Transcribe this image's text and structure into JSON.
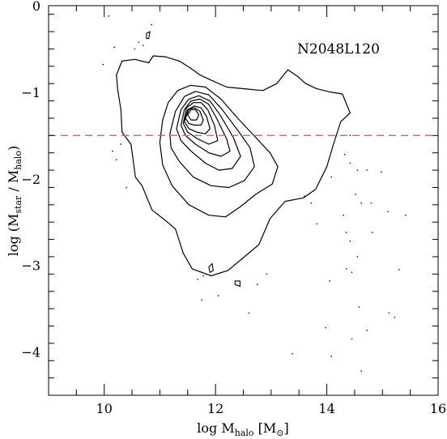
{
  "chart_data": {
    "type": "contour",
    "annotation": "N2048L120",
    "xlabel": {
      "main": "log M",
      "sub": "halo",
      "unit_open": " [M",
      "unit_sub": "⊙",
      "unit_close": "]"
    },
    "ylabel": {
      "open": "log (M",
      "sub1": "star",
      "mid": " / M",
      "sub2": "halo",
      "close": ")"
    },
    "xlim": [
      9,
      16
    ],
    "ylim": [
      -4.5,
      0
    ],
    "xticks": [
      10,
      12,
      14,
      16
    ],
    "yticks": [
      0,
      -1,
      -2,
      -3,
      -4
    ],
    "xticklabels": [
      "10",
      "12",
      "14",
      "16"
    ],
    "yticklabels": [
      "0",
      "−1",
      "−2",
      "−3",
      "−4"
    ],
    "reference_line": {
      "y": -1.5,
      "style": "dashed",
      "color": "#e06060"
    },
    "line_color": "#000000",
    "contours": [
      [
        [
          10.32,
          -0.64
        ],
        [
          10.55,
          -0.62
        ],
        [
          10.8,
          -0.66
        ],
        [
          10.88,
          -0.58
        ],
        [
          11.1,
          -0.59
        ],
        [
          11.35,
          -0.64
        ],
        [
          11.55,
          -0.72
        ],
        [
          11.72,
          -0.8
        ],
        [
          11.92,
          -0.86
        ],
        [
          12.2,
          -0.94
        ],
        [
          12.52,
          -0.96
        ],
        [
          12.85,
          -0.98
        ],
        [
          13.1,
          -0.9
        ],
        [
          13.3,
          -0.74
        ],
        [
          13.48,
          -0.82
        ],
        [
          13.62,
          -0.9
        ],
        [
          13.82,
          -0.96
        ],
        [
          14.08,
          -1.0
        ],
        [
          14.28,
          -1.02
        ],
        [
          14.42,
          -1.24
        ],
        [
          14.25,
          -1.34
        ],
        [
          14.12,
          -1.6
        ],
        [
          14.0,
          -1.86
        ],
        [
          13.8,
          -2.12
        ],
        [
          13.58,
          -2.22
        ],
        [
          13.25,
          -2.26
        ],
        [
          12.98,
          -2.46
        ],
        [
          12.78,
          -2.76
        ],
        [
          12.52,
          -2.9
        ],
        [
          12.22,
          -3.06
        ],
        [
          11.92,
          -3.12
        ],
        [
          11.58,
          -3.04
        ],
        [
          11.42,
          -2.86
        ],
        [
          11.28,
          -2.58
        ],
        [
          11.1,
          -2.48
        ],
        [
          10.86,
          -2.36
        ],
        [
          10.68,
          -2.08
        ],
        [
          10.56,
          -1.98
        ],
        [
          10.52,
          -1.78
        ],
        [
          10.48,
          -1.6
        ],
        [
          10.32,
          -1.46
        ],
        [
          10.3,
          -1.2
        ],
        [
          10.24,
          -0.96
        ],
        [
          10.22,
          -0.8
        ]
      ],
      [
        [
          11.0,
          -1.58
        ],
        [
          11.05,
          -1.32
        ],
        [
          11.15,
          -1.12
        ],
        [
          11.32,
          -0.98
        ],
        [
          11.55,
          -0.92
        ],
        [
          11.82,
          -0.94
        ],
        [
          12.1,
          -1.08
        ],
        [
          12.4,
          -1.3
        ],
        [
          12.72,
          -1.52
        ],
        [
          12.98,
          -1.7
        ],
        [
          13.12,
          -1.86
        ],
        [
          13.02,
          -2.06
        ],
        [
          12.72,
          -2.18
        ],
        [
          12.45,
          -2.32
        ],
        [
          12.18,
          -2.44
        ],
        [
          11.88,
          -2.42
        ],
        [
          11.52,
          -2.3
        ],
        [
          11.22,
          -2.08
        ],
        [
          11.05,
          -1.84
        ]
      ],
      [
        [
          11.18,
          -1.48
        ],
        [
          11.28,
          -1.22
        ],
        [
          11.44,
          -1.05
        ],
        [
          11.64,
          -0.99
        ],
        [
          11.88,
          -1.03
        ],
        [
          12.12,
          -1.2
        ],
        [
          12.4,
          -1.44
        ],
        [
          12.62,
          -1.64
        ],
        [
          12.7,
          -1.86
        ],
        [
          12.52,
          -2.02
        ],
        [
          12.24,
          -2.1
        ],
        [
          11.92,
          -2.08
        ],
        [
          11.6,
          -1.98
        ],
        [
          11.35,
          -1.8
        ],
        [
          11.2,
          -1.64
        ]
      ],
      [
        [
          11.3,
          -1.42
        ],
        [
          11.38,
          -1.2
        ],
        [
          11.52,
          -1.08
        ],
        [
          11.7,
          -1.04
        ],
        [
          11.9,
          -1.1
        ],
        [
          12.08,
          -1.26
        ],
        [
          12.32,
          -1.52
        ],
        [
          12.45,
          -1.74
        ],
        [
          12.3,
          -1.88
        ],
        [
          12.06,
          -1.9
        ],
        [
          11.82,
          -1.82
        ],
        [
          11.56,
          -1.68
        ],
        [
          11.38,
          -1.56
        ]
      ],
      [
        [
          11.38,
          -1.38
        ],
        [
          11.44,
          -1.2
        ],
        [
          11.56,
          -1.1
        ],
        [
          11.72,
          -1.08
        ],
        [
          11.88,
          -1.14
        ],
        [
          12.02,
          -1.3
        ],
        [
          12.2,
          -1.54
        ],
        [
          12.26,
          -1.68
        ],
        [
          12.1,
          -1.74
        ],
        [
          11.88,
          -1.7
        ],
        [
          11.64,
          -1.6
        ],
        [
          11.46,
          -1.5
        ]
      ],
      [
        [
          11.42,
          -1.36
        ],
        [
          11.48,
          -1.18
        ],
        [
          11.6,
          -1.12
        ],
        [
          11.74,
          -1.12
        ],
        [
          11.86,
          -1.2
        ],
        [
          11.98,
          -1.38
        ],
        [
          12.04,
          -1.56
        ],
        [
          11.88,
          -1.6
        ],
        [
          11.68,
          -1.54
        ],
        [
          11.5,
          -1.46
        ]
      ],
      [
        [
          11.44,
          -1.34
        ],
        [
          11.5,
          -1.2
        ],
        [
          11.62,
          -1.16
        ],
        [
          11.74,
          -1.18
        ],
        [
          11.84,
          -1.28
        ],
        [
          11.9,
          -1.42
        ],
        [
          11.82,
          -1.48
        ],
        [
          11.66,
          -1.46
        ],
        [
          11.52,
          -1.42
        ]
      ],
      [
        [
          11.46,
          -1.3
        ],
        [
          11.52,
          -1.2
        ],
        [
          11.62,
          -1.18
        ],
        [
          11.72,
          -1.22
        ],
        [
          11.78,
          -1.32
        ],
        [
          11.74,
          -1.38
        ],
        [
          11.62,
          -1.38
        ],
        [
          11.52,
          -1.36
        ]
      ],
      [
        [
          11.5,
          -1.26
        ],
        [
          11.56,
          -1.2
        ],
        [
          11.64,
          -1.2
        ],
        [
          11.7,
          -1.26
        ],
        [
          11.66,
          -1.32
        ],
        [
          11.56,
          -1.32
        ]
      ]
    ],
    "fragments": [
      [
        [
          10.76,
          -0.32
        ],
        [
          10.82,
          -0.3
        ],
        [
          10.8,
          -0.38
        ],
        [
          10.76,
          -0.38
        ]
      ],
      [
        [
          12.35,
          -3.18
        ],
        [
          12.44,
          -3.18
        ],
        [
          12.44,
          -3.24
        ],
        [
          12.35,
          -3.22
        ]
      ],
      [
        [
          11.88,
          -3.02
        ],
        [
          11.94,
          -2.98
        ],
        [
          11.96,
          -3.06
        ],
        [
          11.9,
          -3.08
        ]
      ]
    ],
    "scatter": [
      [
        10.08,
        -0.12
      ],
      [
        9.98,
        -0.68
      ],
      [
        10.55,
        -0.5
      ],
      [
        10.62,
        -0.42
      ],
      [
        10.18,
        -0.48
      ],
      [
        10.85,
        -0.22
      ],
      [
        10.7,
        -0.46
      ],
      [
        10.15,
        -1.68
      ],
      [
        10.22,
        -1.78
      ],
      [
        10.3,
        -1.6
      ],
      [
        10.4,
        -2.1
      ],
      [
        11.68,
        -3.16
      ],
      [
        11.78,
        -3.12
      ],
      [
        12.92,
        -3.1
      ],
      [
        12.6,
        -3.55
      ],
      [
        14.08,
        -1.98
      ],
      [
        14.32,
        -1.72
      ],
      [
        14.42,
        -1.5
      ],
      [
        14.42,
        -1.82
      ],
      [
        14.55,
        -1.9
      ],
      [
        14.52,
        -2.18
      ],
      [
        14.72,
        -1.9
      ],
      [
        14.62,
        -2.28
      ],
      [
        14.8,
        -2.28
      ],
      [
        13.82,
        -2.52
      ],
      [
        14.35,
        -2.62
      ],
      [
        14.42,
        -2.72
      ],
      [
        14.55,
        -2.9
      ],
      [
        14.98,
        -1.92
      ],
      [
        15.1,
        -2.38
      ],
      [
        15.42,
        -2.42
      ],
      [
        14.35,
        -3.04
      ],
      [
        14.45,
        -3.08
      ],
      [
        15.12,
        -3.55
      ],
      [
        14.05,
        -3.18
      ],
      [
        13.98,
        -3.72
      ],
      [
        15.22,
        -3.6
      ],
      [
        14.58,
        -3.48
      ],
      [
        14.45,
        -3.85
      ],
      [
        14.62,
        -4.22
      ],
      [
        14.08,
        -4.05
      ],
      [
        13.38,
        -4.02
      ],
      [
        14.82,
        -2.62
      ],
      [
        14.3,
        -2.42
      ],
      [
        13.6,
        -2.2
      ],
      [
        13.72,
        -2.28
      ],
      [
        12.05,
        -3.35
      ],
      [
        11.75,
        -3.4
      ],
      [
        12.75,
        -3.22
      ],
      [
        14.72,
        -3.75
      ],
      [
        15.3,
        -3.05
      ]
    ]
  }
}
